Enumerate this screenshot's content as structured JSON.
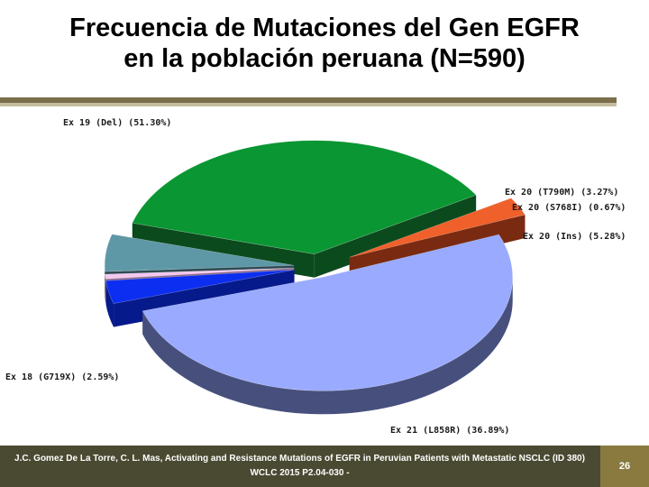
{
  "title": {
    "line1": "Frecuencia de Mutaciones del Gen EGFR",
    "line2": "en la población peruana (N=590)"
  },
  "footer": {
    "citation_line1": "J.C. Gomez De La Torre, C. L. Mas, Activating and Resistance Mutations of EGFR in Peruvian Patients with Metastatic NSCLC (ID 380)",
    "citation_line2": "WCLC 2015 P2.04-030 -",
    "page_number": "26"
  },
  "chart_data": {
    "type": "pie",
    "style": "3d-exploded",
    "title": "",
    "slices": [
      {
        "label": "Ex 19 (Del) (51.30%)",
        "category": "Ex 19 (Del)",
        "value": 51.3,
        "color": "#99aaff",
        "side_color": "#47507d"
      },
      {
        "label": "Ex 20 (T790M) (3.27%)",
        "category": "Ex 20 (T790M)",
        "value": 3.27,
        "color": "#0b2ef0",
        "side_color": "#071a8c"
      },
      {
        "label": "Ex 20 (S768I) (0.67%)",
        "category": "Ex 20 (S768I)",
        "value": 0.67,
        "color": "#f3c8f0",
        "side_color": "#8c6a88"
      },
      {
        "label": "Ex 20 (Ins) (5.28%)",
        "category": "Ex 20 (Ins)",
        "value": 5.28,
        "color": "#5e98a6",
        "side_color": "#2c4a52"
      },
      {
        "label": "Ex 21 (L858R) (36.89%)",
        "category": "Ex 21 (L858R)",
        "value": 36.89,
        "color": "#0a9632",
        "side_color": "#0b4a1c"
      },
      {
        "label": "Ex 18 (G719X) (2.59%)",
        "category": "Ex 18 (G719X)",
        "value": 2.59,
        "color": "#f0602a",
        "side_color": "#7a2a10"
      }
    ],
    "legend": "none"
  }
}
